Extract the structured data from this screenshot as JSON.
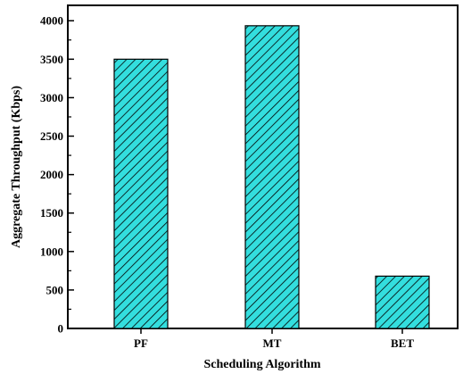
{
  "chart_data": {
    "type": "bar",
    "categories": [
      "PF",
      "MT",
      "BET"
    ],
    "values": [
      3500,
      3935,
      680
    ],
    "title": "",
    "xlabel": "Scheduling Algorithm",
    "ylabel": "Aggregate Throughput (Kbps)",
    "ylim": [
      0,
      4200
    ],
    "yticks": [
      0,
      500,
      1000,
      1500,
      2000,
      2500,
      3000,
      3500,
      4000
    ],
    "grid": false,
    "legend": "none",
    "bar_fill": "#33dede",
    "hatch": "diagonal black lines"
  }
}
